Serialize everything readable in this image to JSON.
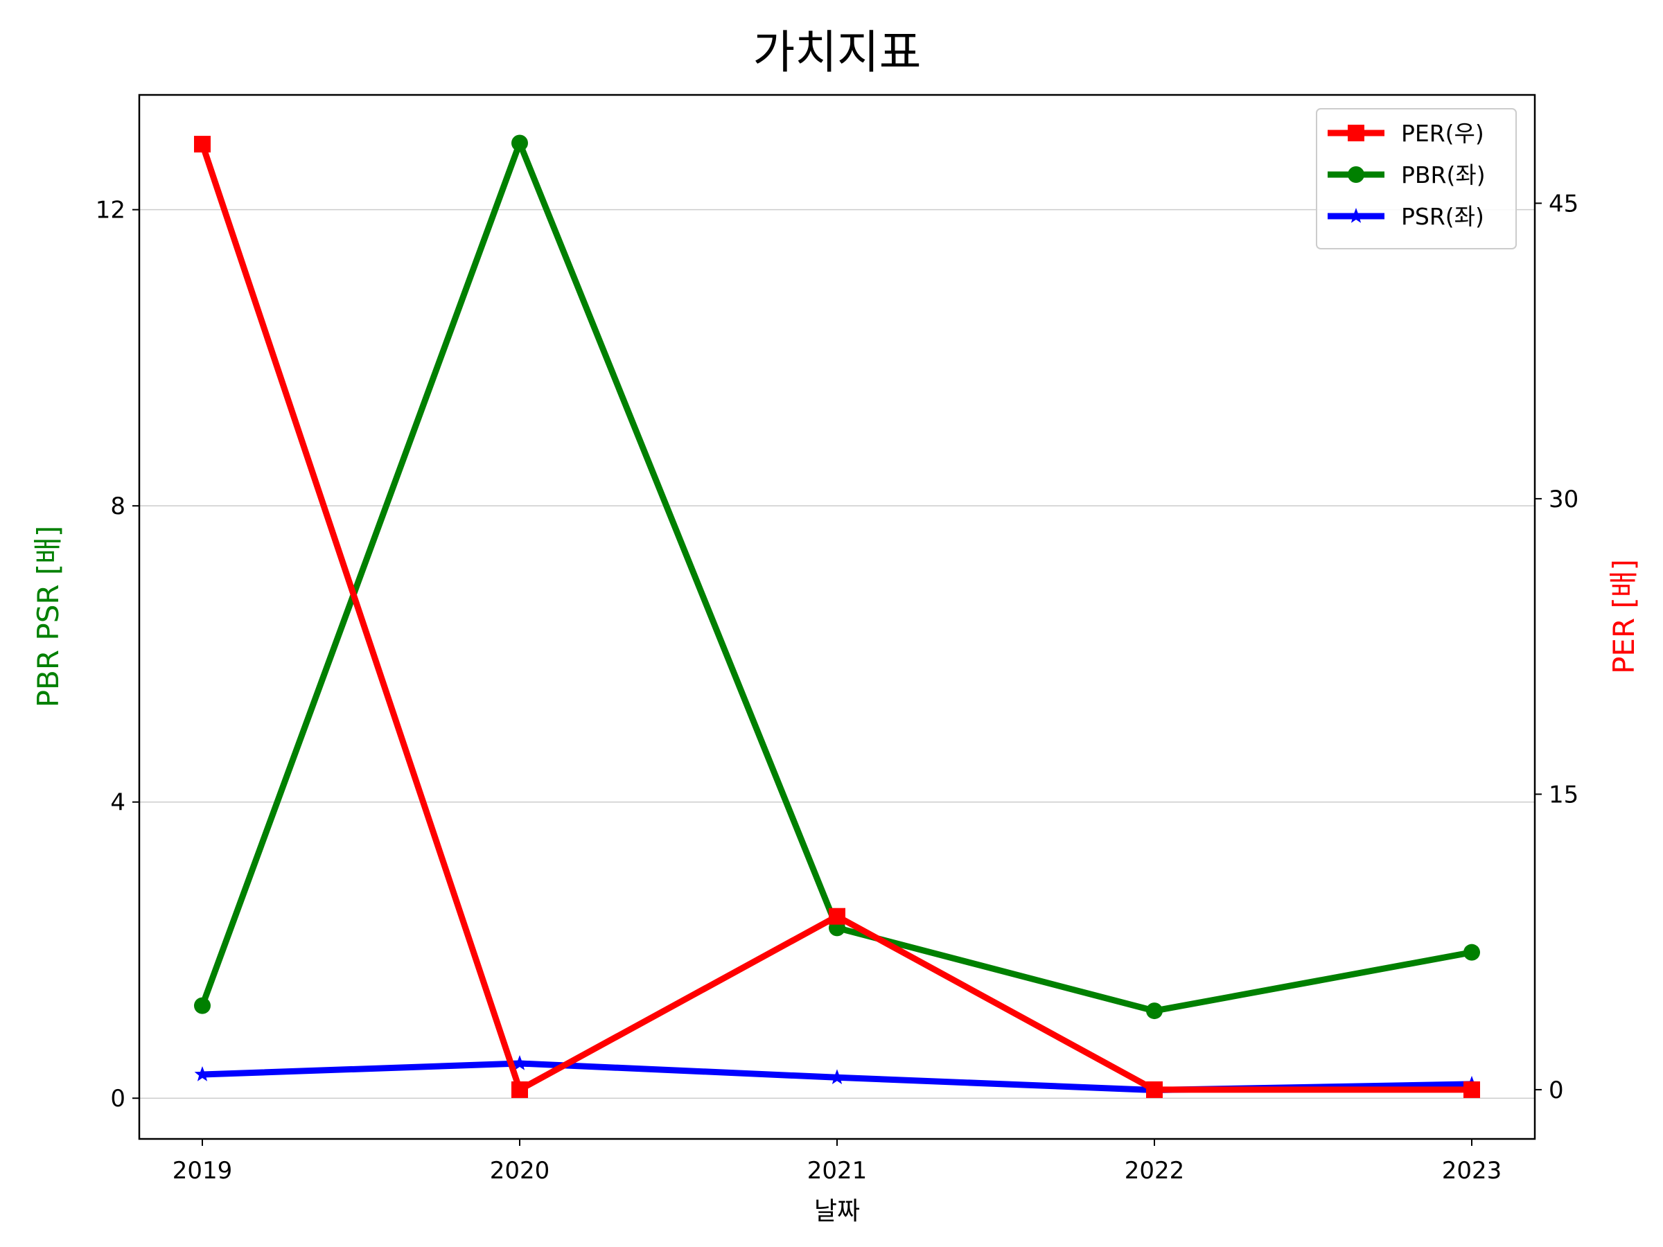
{
  "chart_data": {
    "type": "line",
    "title": "가치지표",
    "xlabel": "날짜",
    "ylabel_left": "PBR PSR [배]",
    "ylabel_right": "PER [배]",
    "categories": [
      "2019",
      "2020",
      "2021",
      "2022",
      "2023"
    ],
    "ylim_left": [
      -0.55,
      13.55
    ],
    "ylim_right": [
      -2.5,
      50.5
    ],
    "yticks_left": [
      0,
      4,
      8,
      12
    ],
    "yticks_right": [
      0,
      15,
      30,
      45
    ],
    "grid": true,
    "legend_position": "top-right",
    "series": [
      {
        "name": "PER(우)",
        "axis": "right",
        "color": "#ff0000",
        "marker": "square",
        "values": [
          48.0,
          0.0,
          8.8,
          0.0,
          0.0
        ]
      },
      {
        "name": "PBR(좌)",
        "axis": "left",
        "color": "#008000",
        "marker": "circle",
        "values": [
          1.25,
          12.9,
          2.3,
          1.18,
          1.97
        ]
      },
      {
        "name": "PSR(좌)",
        "axis": "left",
        "color": "#0000ff",
        "marker": "star",
        "values": [
          0.32,
          0.47,
          0.28,
          0.11,
          0.19
        ]
      }
    ]
  }
}
